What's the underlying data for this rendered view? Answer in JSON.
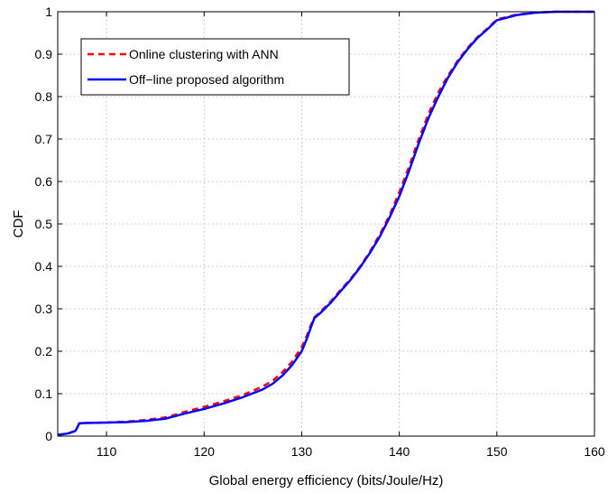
{
  "chart_data": {
    "type": "line",
    "title": "",
    "xlabel": "Global energy efficiency (bits/Joule/Hz)",
    "ylabel": "CDF",
    "xlim": [
      105,
      160
    ],
    "ylim": [
      0,
      1
    ],
    "x_ticks": [
      "110",
      "120",
      "130",
      "140",
      "150",
      "160"
    ],
    "y_ticks": [
      "0",
      "0.1",
      "0.2",
      "0.3",
      "0.4",
      "0.5",
      "0.6",
      "0.7",
      "0.8",
      "0.9",
      "1"
    ],
    "grid": true,
    "legend_position": "top-left",
    "series": [
      {
        "name": "Online clustering with ANN",
        "color": "#ff0000",
        "style": "dashed",
        "points": [
          [
            105,
            0.003
          ],
          [
            106,
            0.006
          ],
          [
            106.8,
            0.012
          ],
          [
            107,
            0.02
          ],
          [
            107.2,
            0.03
          ],
          [
            108,
            0.031
          ],
          [
            110,
            0.032
          ],
          [
            112,
            0.034
          ],
          [
            114,
            0.038
          ],
          [
            116,
            0.044
          ],
          [
            117,
            0.05
          ],
          [
            118,
            0.057
          ],
          [
            120,
            0.069
          ],
          [
            122,
            0.082
          ],
          [
            124,
            0.097
          ],
          [
            126,
            0.117
          ],
          [
            127,
            0.13
          ],
          [
            128,
            0.15
          ],
          [
            129,
            0.175
          ],
          [
            130,
            0.21
          ],
          [
            130.5,
            0.235
          ],
          [
            131,
            0.265
          ],
          [
            131.3,
            0.28
          ],
          [
            132,
            0.295
          ],
          [
            133,
            0.318
          ],
          [
            134,
            0.345
          ],
          [
            135,
            0.37
          ],
          [
            136,
            0.4
          ],
          [
            137,
            0.435
          ],
          [
            138,
            0.475
          ],
          [
            139,
            0.52
          ],
          [
            140,
            0.575
          ],
          [
            141,
            0.635
          ],
          [
            142,
            0.7
          ],
          [
            143,
            0.76
          ],
          [
            144,
            0.81
          ],
          [
            145,
            0.85
          ],
          [
            146,
            0.885
          ],
          [
            147,
            0.915
          ],
          [
            148,
            0.94
          ],
          [
            149,
            0.96
          ],
          [
            150,
            0.982
          ],
          [
            152,
            0.993
          ],
          [
            154,
            0.998
          ],
          [
            156,
            1.0
          ],
          [
            160,
            1.0
          ]
        ]
      },
      {
        "name": "Off−line proposed algorithm",
        "color": "#0000ff",
        "style": "solid",
        "points": [
          [
            105,
            0.003
          ],
          [
            106,
            0.006
          ],
          [
            106.8,
            0.012
          ],
          [
            107,
            0.02
          ],
          [
            107.2,
            0.03
          ],
          [
            108,
            0.031
          ],
          [
            110,
            0.032
          ],
          [
            112,
            0.033
          ],
          [
            114,
            0.036
          ],
          [
            116,
            0.041
          ],
          [
            117,
            0.047
          ],
          [
            118,
            0.053
          ],
          [
            120,
            0.064
          ],
          [
            122,
            0.077
          ],
          [
            124,
            0.092
          ],
          [
            126,
            0.11
          ],
          [
            127,
            0.123
          ],
          [
            128,
            0.142
          ],
          [
            129,
            0.167
          ],
          [
            130,
            0.2
          ],
          [
            130.5,
            0.228
          ],
          [
            131,
            0.26
          ],
          [
            131.3,
            0.278
          ],
          [
            132,
            0.292
          ],
          [
            133,
            0.315
          ],
          [
            134,
            0.342
          ],
          [
            135,
            0.368
          ],
          [
            136,
            0.398
          ],
          [
            137,
            0.432
          ],
          [
            138,
            0.47
          ],
          [
            139,
            0.515
          ],
          [
            140,
            0.565
          ],
          [
            141,
            0.625
          ],
          [
            142,
            0.69
          ],
          [
            143,
            0.75
          ],
          [
            144,
            0.8
          ],
          [
            145,
            0.845
          ],
          [
            146,
            0.882
          ],
          [
            147,
            0.912
          ],
          [
            148,
            0.938
          ],
          [
            149,
            0.958
          ],
          [
            150,
            0.98
          ],
          [
            152,
            0.992
          ],
          [
            154,
            0.998
          ],
          [
            156,
            1.0
          ],
          [
            160,
            1.0
          ]
        ]
      }
    ]
  }
}
